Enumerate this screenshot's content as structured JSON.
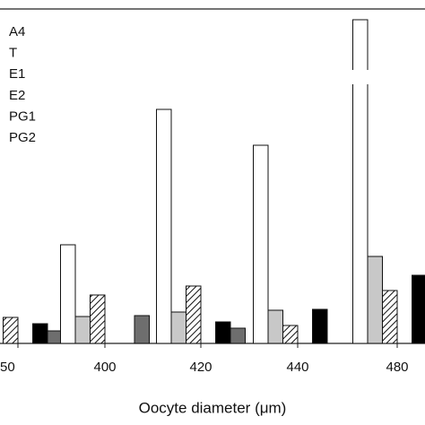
{
  "chart_data": {
    "type": "bar",
    "x_label": "Oocyte diameter (μm)",
    "categories": [
      "50",
      "400",
      "420",
      "440",
      "480"
    ],
    "series": [
      {
        "name": "A4",
        "color": "#ffffff",
        "values": [
          null,
          110,
          261,
          221,
          361
        ]
      },
      {
        "name": "T",
        "color": "#c8c8c8",
        "values": [
          null,
          30,
          35,
          37,
          97
        ]
      },
      {
        "name": "E1",
        "color": "#ffffff",
        "hatch": true,
        "values": [
          29,
          54,
          64,
          20,
          59
        ]
      },
      {
        "name": "E2",
        "color": "#b0b0b0",
        "values": [
          null,
          null,
          null,
          null,
          null
        ]
      },
      {
        "name": "PG1",
        "color": "#000000",
        "values": [
          22,
          null,
          24,
          38,
          76
        ]
      },
      {
        "name": "PG2",
        "color": "#6e6e6e",
        "values": [
          14,
          31,
          17,
          null,
          null
        ]
      }
    ],
    "ylim": [
      0,
      361
    ]
  }
}
